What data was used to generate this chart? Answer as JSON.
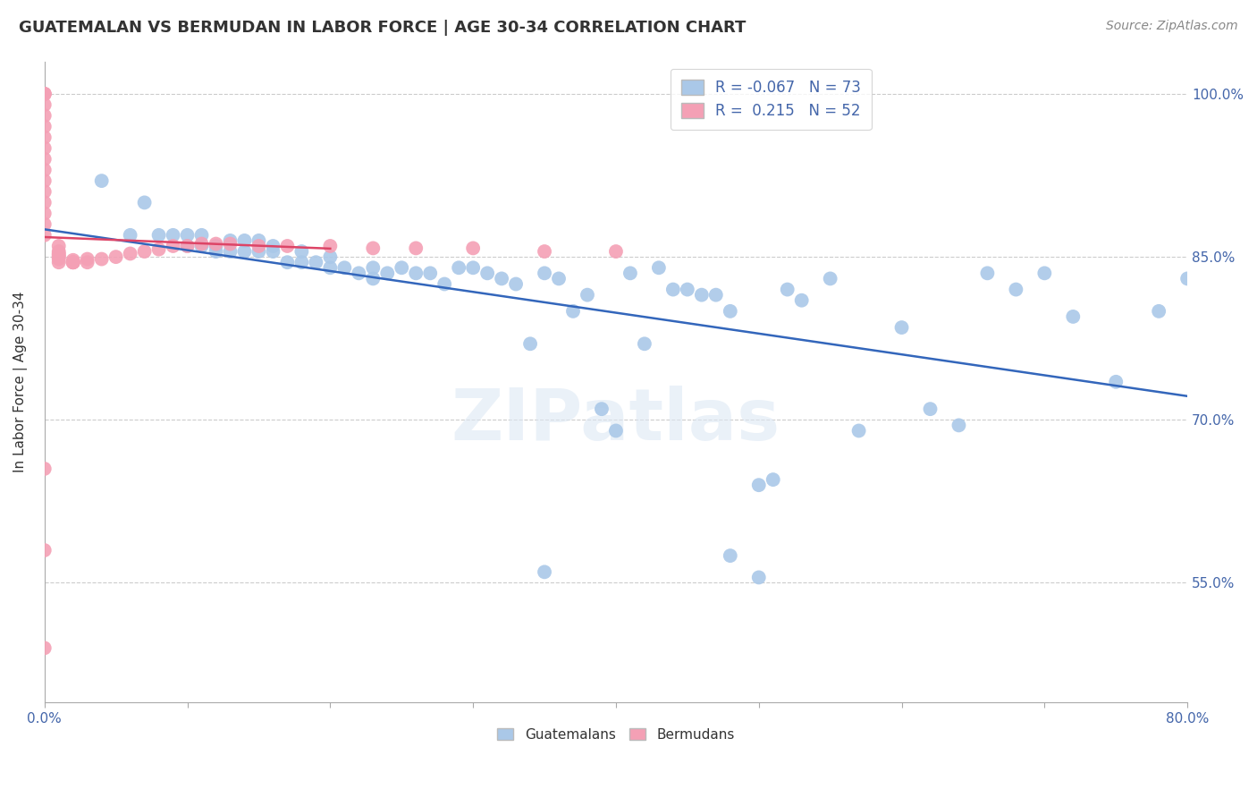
{
  "title": "GUATEMALAN VS BERMUDAN IN LABOR FORCE | AGE 30-34 CORRELATION CHART",
  "source_text": "Source: ZipAtlas.com",
  "ylabel": "In Labor Force | Age 30-34",
  "xmin": 0.0,
  "xmax": 0.8,
  "ymin": 0.44,
  "ymax": 1.03,
  "yticks": [
    0.55,
    0.7,
    0.85,
    1.0
  ],
  "ytick_labels": [
    "55.0%",
    "70.0%",
    "85.0%",
    "100.0%"
  ],
  "xticks": [
    0.0,
    0.1,
    0.2,
    0.3,
    0.4,
    0.5,
    0.6,
    0.7,
    0.8
  ],
  "legend_r_guatemalan": "-0.067",
  "legend_n_guatemalan": "73",
  "legend_r_bermudan": "0.215",
  "legend_n_bermudan": "52",
  "blue_color": "#aac8e8",
  "pink_color": "#f4a0b5",
  "trend_blue": "#3366bb",
  "trend_pink": "#dd4466",
  "watermark": "ZIPatlas",
  "guatemalan_x": [
    0.04,
    0.06,
    0.07,
    0.08,
    0.09,
    0.1,
    0.1,
    0.11,
    0.11,
    0.12,
    0.12,
    0.13,
    0.13,
    0.14,
    0.14,
    0.15,
    0.15,
    0.16,
    0.16,
    0.17,
    0.18,
    0.18,
    0.19,
    0.2,
    0.2,
    0.21,
    0.22,
    0.23,
    0.23,
    0.24,
    0.25,
    0.26,
    0.27,
    0.28,
    0.29,
    0.3,
    0.31,
    0.32,
    0.33,
    0.34,
    0.35,
    0.36,
    0.37,
    0.38,
    0.39,
    0.4,
    0.41,
    0.42,
    0.43,
    0.44,
    0.45,
    0.46,
    0.47,
    0.48,
    0.5,
    0.51,
    0.52,
    0.53,
    0.55,
    0.57,
    0.6,
    0.62,
    0.64,
    0.66,
    0.68,
    0.7,
    0.72,
    0.75,
    0.78,
    0.8,
    0.35,
    0.48,
    0.5
  ],
  "guatemalan_y": [
    0.92,
    0.87,
    0.9,
    0.87,
    0.87,
    0.86,
    0.87,
    0.86,
    0.87,
    0.855,
    0.86,
    0.855,
    0.865,
    0.855,
    0.865,
    0.855,
    0.865,
    0.855,
    0.86,
    0.845,
    0.855,
    0.845,
    0.845,
    0.84,
    0.85,
    0.84,
    0.835,
    0.83,
    0.84,
    0.835,
    0.84,
    0.835,
    0.835,
    0.825,
    0.84,
    0.84,
    0.835,
    0.83,
    0.825,
    0.77,
    0.835,
    0.83,
    0.8,
    0.815,
    0.71,
    0.69,
    0.835,
    0.77,
    0.84,
    0.82,
    0.82,
    0.815,
    0.815,
    0.8,
    0.64,
    0.645,
    0.82,
    0.81,
    0.83,
    0.69,
    0.785,
    0.71,
    0.695,
    0.835,
    0.82,
    0.835,
    0.795,
    0.735,
    0.8,
    0.83,
    0.56,
    0.575,
    0.555
  ],
  "bermudan_x": [
    0.0,
    0.0,
    0.0,
    0.0,
    0.0,
    0.0,
    0.0,
    0.0,
    0.0,
    0.0,
    0.0,
    0.0,
    0.0,
    0.0,
    0.0,
    0.0,
    0.01,
    0.01,
    0.01,
    0.01,
    0.01,
    0.01,
    0.01,
    0.01,
    0.02,
    0.02,
    0.02,
    0.02,
    0.02,
    0.03,
    0.03,
    0.04,
    0.05,
    0.06,
    0.07,
    0.08,
    0.09,
    0.1,
    0.11,
    0.12,
    0.13,
    0.15,
    0.17,
    0.2,
    0.23,
    0.26,
    0.3,
    0.35,
    0.4,
    0.0,
    0.0,
    0.0
  ],
  "bermudan_y": [
    1.0,
    1.0,
    1.0,
    0.99,
    0.98,
    0.97,
    0.96,
    0.95,
    0.94,
    0.93,
    0.92,
    0.91,
    0.9,
    0.89,
    0.88,
    0.87,
    0.86,
    0.855,
    0.853,
    0.852,
    0.85,
    0.85,
    0.848,
    0.845,
    0.845,
    0.845,
    0.845,
    0.845,
    0.847,
    0.845,
    0.848,
    0.848,
    0.85,
    0.853,
    0.855,
    0.857,
    0.86,
    0.86,
    0.862,
    0.862,
    0.862,
    0.86,
    0.86,
    0.86,
    0.858,
    0.858,
    0.858,
    0.855,
    0.855,
    0.655,
    0.58,
    0.49
  ]
}
